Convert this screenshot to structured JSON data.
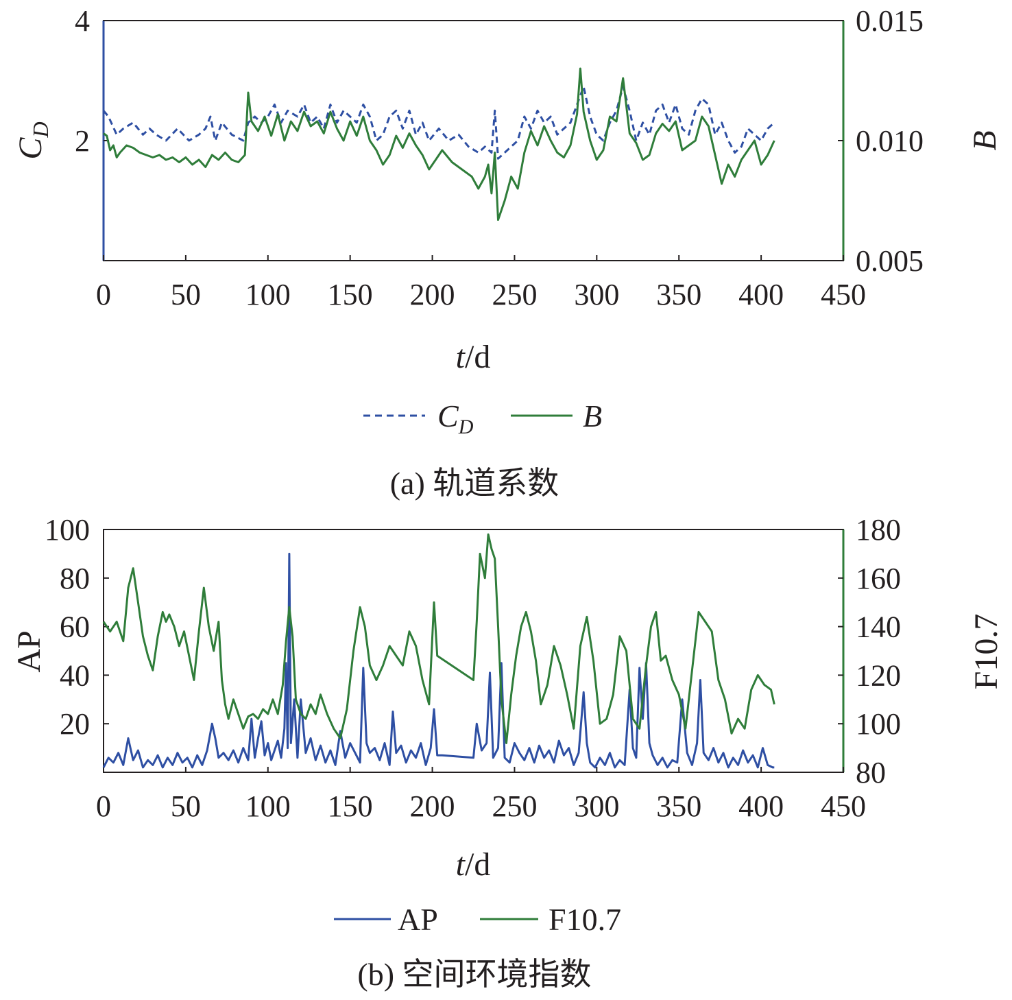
{
  "colors": {
    "blue": "#2e4fa3",
    "green": "#2f7d3a",
    "text": "#231f20"
  },
  "charts": [
    {
      "caption": "(a) 轨道系数",
      "xlabel": {
        "italic": "t",
        "rest": "/d"
      },
      "ylabel_left": {
        "main": "C",
        "sub": "D"
      },
      "ylabel_right": "B",
      "legend": [
        {
          "name": {
            "main": "C",
            "sub": "D"
          },
          "style": "dashed"
        },
        {
          "name": "B",
          "style": "solid"
        }
      ],
      "x_ticks": [
        "0",
        "50",
        "100",
        "150",
        "200",
        "250",
        "300",
        "350",
        "400",
        "450"
      ],
      "left_ticks": [
        "2",
        "4"
      ],
      "right_ticks": [
        "0.005",
        "0.010",
        "0.015"
      ]
    },
    {
      "caption": "(b) 空间环境指数",
      "xlabel": {
        "italic": "t",
        "rest": "/d"
      },
      "ylabel_left": "AP",
      "ylabel_right": "F10.7",
      "legend": [
        {
          "name": "AP",
          "style": "solid"
        },
        {
          "name": "F10.7",
          "style": "solid"
        }
      ],
      "x_ticks": [
        "0",
        "50",
        "100",
        "150",
        "200",
        "250",
        "300",
        "350",
        "400",
        "450"
      ],
      "left_ticks": [
        "20",
        "40",
        "60",
        "80",
        "100"
      ],
      "right_ticks": [
        "80",
        "100",
        "120",
        "140",
        "160",
        "180"
      ]
    }
  ],
  "chart_data": [
    {
      "type": "line",
      "title": "(a) 轨道系数",
      "xlabel": "t/d",
      "ylabel": "C_D",
      "ylabel_right": "B",
      "xlim": [
        0,
        450
      ],
      "ylim": [
        0,
        4
      ],
      "ylim_right": [
        0.005,
        0.015
      ],
      "legend_position": "bottom",
      "grid": false,
      "series": [
        {
          "name": "C_D",
          "axis": "left",
          "style": "dashed",
          "color": "#2e4fa3",
          "x": [
            0,
            3,
            8,
            12,
            18,
            24,
            28,
            32,
            38,
            45,
            52,
            58,
            62,
            65,
            68,
            72,
            78,
            85,
            88,
            92,
            96,
            100,
            104,
            108,
            112,
            118,
            122,
            126,
            130,
            134,
            138,
            142,
            146,
            150,
            154,
            158,
            162,
            166,
            170,
            174,
            178,
            182,
            186,
            190,
            194,
            198,
            204,
            210,
            216,
            222,
            228,
            232,
            236,
            238,
            240,
            244,
            248,
            252,
            256,
            260,
            264,
            268,
            272,
            276,
            280,
            284,
            288,
            292,
            296,
            300,
            304,
            308,
            312,
            316,
            320,
            324,
            328,
            332,
            336,
            340,
            344,
            348,
            352,
            356,
            360,
            364,
            368,
            372,
            376,
            380,
            384,
            388,
            392,
            396,
            400,
            404,
            408
          ],
          "y": [
            2.5,
            2.4,
            2.1,
            2.2,
            2.3,
            2.1,
            2.2,
            2.1,
            2.0,
            2.2,
            2.0,
            2.1,
            2.2,
            2.4,
            2.0,
            2.3,
            2.1,
            2.0,
            2.3,
            2.4,
            2.3,
            2.4,
            2.6,
            2.3,
            2.5,
            2.4,
            2.6,
            2.3,
            2.4,
            2.2,
            2.6,
            2.3,
            2.5,
            2.4,
            2.3,
            2.6,
            2.4,
            2.0,
            2.1,
            2.4,
            2.5,
            2.2,
            2.5,
            2.1,
            2.3,
            2.0,
            2.2,
            2.0,
            2.1,
            1.9,
            1.8,
            1.9,
            1.8,
            2.5,
            1.7,
            1.8,
            1.9,
            2.0,
            2.4,
            2.2,
            2.5,
            2.3,
            2.4,
            2.1,
            2.2,
            2.3,
            2.6,
            2.9,
            2.4,
            2.1,
            2.0,
            2.3,
            2.5,
            2.9,
            2.5,
            2.0,
            2.3,
            2.1,
            2.5,
            2.6,
            2.3,
            2.6,
            2.2,
            2.1,
            2.5,
            2.7,
            2.6,
            2.1,
            2.3,
            2.0,
            1.8,
            1.9,
            2.2,
            2.1,
            2.0,
            2.2,
            2.3
          ]
        },
        {
          "name": "B",
          "axis": "right",
          "style": "solid",
          "color": "#2f7d3a",
          "x": [
            0,
            2,
            4,
            6,
            8,
            10,
            14,
            18,
            22,
            26,
            30,
            34,
            38,
            42,
            46,
            50,
            54,
            58,
            62,
            66,
            70,
            74,
            78,
            82,
            86,
            88,
            90,
            94,
            98,
            102,
            106,
            110,
            114,
            118,
            122,
            126,
            130,
            134,
            138,
            142,
            146,
            150,
            154,
            158,
            162,
            166,
            170,
            174,
            178,
            182,
            186,
            190,
            194,
            198,
            202,
            206,
            212,
            218,
            224,
            228,
            232,
            234,
            236,
            238,
            240,
            244,
            248,
            252,
            256,
            260,
            264,
            268,
            272,
            276,
            280,
            284,
            288,
            290,
            292,
            296,
            300,
            304,
            308,
            312,
            316,
            320,
            324,
            328,
            332,
            336,
            340,
            344,
            348,
            352,
            356,
            360,
            364,
            368,
            372,
            376,
            380,
            384,
            388,
            392,
            396,
            400,
            404,
            408
          ],
          "y": [
            0.0103,
            0.0102,
            0.0096,
            0.0098,
            0.0093,
            0.0095,
            0.0098,
            0.0097,
            0.0095,
            0.0094,
            0.0093,
            0.0094,
            0.0092,
            0.0093,
            0.0091,
            0.0093,
            0.009,
            0.0092,
            0.0089,
            0.0094,
            0.0092,
            0.0095,
            0.0092,
            0.0091,
            0.0094,
            0.012,
            0.0108,
            0.0104,
            0.011,
            0.0102,
            0.0111,
            0.01,
            0.0108,
            0.0104,
            0.0112,
            0.0106,
            0.0108,
            0.0103,
            0.0112,
            0.0105,
            0.01,
            0.0108,
            0.0102,
            0.011,
            0.01,
            0.0096,
            0.009,
            0.0094,
            0.0102,
            0.0097,
            0.0103,
            0.0098,
            0.0094,
            0.0088,
            0.0092,
            0.0096,
            0.0091,
            0.0088,
            0.0085,
            0.008,
            0.0085,
            0.009,
            0.0078,
            0.0095,
            0.0067,
            0.0075,
            0.0085,
            0.008,
            0.0095,
            0.0104,
            0.0098,
            0.0106,
            0.01,
            0.0095,
            0.0093,
            0.0098,
            0.0111,
            0.013,
            0.0112,
            0.01,
            0.0092,
            0.0096,
            0.011,
            0.0108,
            0.0126,
            0.0103,
            0.0099,
            0.0092,
            0.0094,
            0.0103,
            0.0107,
            0.0104,
            0.0108,
            0.0096,
            0.0098,
            0.01,
            0.011,
            0.0106,
            0.0094,
            0.0082,
            0.009,
            0.0085,
            0.0092,
            0.0096,
            0.01,
            0.009,
            0.0094,
            0.01
          ]
        }
      ]
    },
    {
      "type": "line",
      "title": "(b) 空间环境指数",
      "xlabel": "t/d",
      "ylabel": "AP",
      "ylabel_right": "F10.7",
      "xlim": [
        0,
        450
      ],
      "ylim": [
        0,
        100
      ],
      "ylim_right": [
        80,
        180
      ],
      "legend_position": "bottom",
      "grid": false,
      "series": [
        {
          "name": "AP",
          "axis": "left",
          "style": "solid",
          "color": "#2e4fa3",
          "x": [
            0,
            3,
            6,
            9,
            12,
            15,
            18,
            21,
            24,
            27,
            30,
            33,
            36,
            39,
            42,
            45,
            48,
            51,
            54,
            57,
            60,
            63,
            66,
            68,
            70,
            73,
            76,
            79,
            82,
            85,
            88,
            90,
            92,
            94,
            96,
            98,
            100,
            102,
            104,
            106,
            108,
            110,
            111,
            112,
            113,
            114,
            116,
            118,
            120,
            123,
            126,
            129,
            132,
            135,
            138,
            141,
            144,
            147,
            150,
            153,
            156,
            158,
            160,
            162,
            165,
            168,
            171,
            174,
            176,
            178,
            181,
            184,
            187,
            190,
            193,
            196,
            199,
            201,
            203,
            206,
            225,
            227,
            230,
            233,
            235,
            237,
            240,
            242,
            244,
            247,
            250,
            253,
            256,
            259,
            262,
            265,
            268,
            271,
            274,
            277,
            280,
            283,
            286,
            289,
            292,
            294,
            296,
            299,
            302,
            305,
            308,
            311,
            314,
            317,
            320,
            322,
            324,
            326,
            328,
            330,
            332,
            334,
            337,
            340,
            343,
            346,
            349,
            352,
            355,
            358,
            361,
            363,
            365,
            368,
            371,
            374,
            377,
            380,
            383,
            386,
            389,
            392,
            395,
            398,
            401,
            404,
            407,
            408
          ],
          "y": [
            2,
            6,
            4,
            8,
            3,
            14,
            5,
            9,
            2,
            5,
            3,
            7,
            2,
            6,
            3,
            8,
            4,
            6,
            2,
            7,
            3,
            9,
            20,
            14,
            6,
            8,
            5,
            9,
            4,
            10,
            5,
            22,
            6,
            14,
            21,
            7,
            12,
            5,
            9,
            13,
            6,
            18,
            45,
            10,
            90,
            12,
            30,
            6,
            30,
            8,
            14,
            5,
            11,
            4,
            9,
            3,
            17,
            6,
            12,
            8,
            4,
            43,
            12,
            8,
            10,
            5,
            12,
            3,
            25,
            8,
            11,
            4,
            9,
            6,
            12,
            3,
            10,
            26,
            7,
            7,
            6,
            20,
            9,
            12,
            41,
            6,
            10,
            45,
            6,
            4,
            12,
            8,
            5,
            10,
            4,
            11,
            6,
            9,
            4,
            13,
            7,
            10,
            3,
            8,
            33,
            12,
            4,
            2,
            6,
            3,
            8,
            2,
            5,
            3,
            34,
            10,
            6,
            43,
            22,
            45,
            12,
            7,
            3,
            6,
            2,
            5,
            4,
            30,
            8,
            3,
            12,
            38,
            8,
            5,
            10,
            4,
            8,
            2,
            6,
            3,
            9,
            4,
            7,
            2,
            10,
            3,
            2,
            2
          ]
        },
        {
          "name": "F10.7",
          "axis": "right",
          "style": "solid",
          "color": "#2f7d3a",
          "x": [
            0,
            4,
            8,
            12,
            15,
            18,
            21,
            24,
            27,
            30,
            33,
            36,
            38,
            40,
            43,
            46,
            49,
            52,
            55,
            58,
            61,
            64,
            67,
            70,
            72,
            74,
            76,
            79,
            82,
            85,
            88,
            91,
            94,
            97,
            100,
            103,
            106,
            109,
            111,
            113,
            115,
            117,
            120,
            123,
            126,
            129,
            132,
            136,
            140,
            144,
            148,
            152,
            156,
            159,
            162,
            166,
            170,
            174,
            178,
            182,
            186,
            190,
            194,
            198,
            201,
            203,
            225,
            227,
            229,
            232,
            234,
            236,
            238,
            240,
            242,
            245,
            248,
            251,
            254,
            257,
            260,
            263,
            266,
            270,
            274,
            278,
            282,
            286,
            290,
            294,
            298,
            302,
            306,
            310,
            314,
            318,
            322,
            326,
            330,
            333,
            336,
            339,
            342,
            346,
            350,
            354,
            358,
            362,
            366,
            370,
            374,
            378,
            382,
            386,
            390,
            394,
            398,
            402,
            406,
            408
          ],
          "y": [
            142,
            138,
            142,
            134,
            156,
            164,
            150,
            136,
            128,
            122,
            136,
            146,
            142,
            145,
            140,
            132,
            138,
            128,
            118,
            138,
            156,
            140,
            130,
            142,
            118,
            108,
            102,
            110,
            104,
            98,
            103,
            104,
            102,
            106,
            104,
            110,
            104,
            116,
            134,
            148,
            136,
            110,
            104,
            102,
            108,
            104,
            112,
            104,
            98,
            94,
            106,
            130,
            148,
            140,
            124,
            118,
            124,
            132,
            128,
            124,
            138,
            132,
            118,
            108,
            150,
            128,
            118,
            142,
            170,
            160,
            178,
            172,
            168,
            140,
            110,
            92,
            112,
            128,
            140,
            146,
            138,
            126,
            108,
            116,
            132,
            124,
            112,
            98,
            132,
            144,
            126,
            100,
            102,
            112,
            136,
            130,
            102,
            98,
            124,
            140,
            146,
            126,
            128,
            118,
            112,
            98,
            122,
            146,
            142,
            138,
            118,
            110,
            96,
            102,
            98,
            114,
            120,
            116,
            114,
            108
          ]
        }
      ]
    }
  ]
}
